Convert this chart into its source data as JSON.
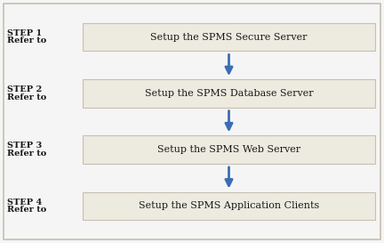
{
  "background_color": "#f5f5f5",
  "outer_border_color": "#c8bfaf",
  "box_fill_color": "#edeae0",
  "box_edge_color": "#c8bfaf",
  "arrow_color": "#3a6db5",
  "text_color": "#1a1a1a",
  "label_color": "#1a1a1a",
  "steps": [
    {
      "label": "STEP 1\nRefer to",
      "box_text": "Setup the SPMS Secure Server"
    },
    {
      "label": "STEP 2\nRefer to",
      "box_text": "Setup the SPMS Database Server"
    },
    {
      "label": "STEP 3\nRefer to",
      "box_text": "Setup the SPMS Web Server"
    },
    {
      "label": "STEP 4\nRefer to",
      "box_text": "Setup the SPMS Application Clients"
    }
  ],
  "fig_width": 4.32,
  "fig_height": 2.73,
  "dpi": 100
}
